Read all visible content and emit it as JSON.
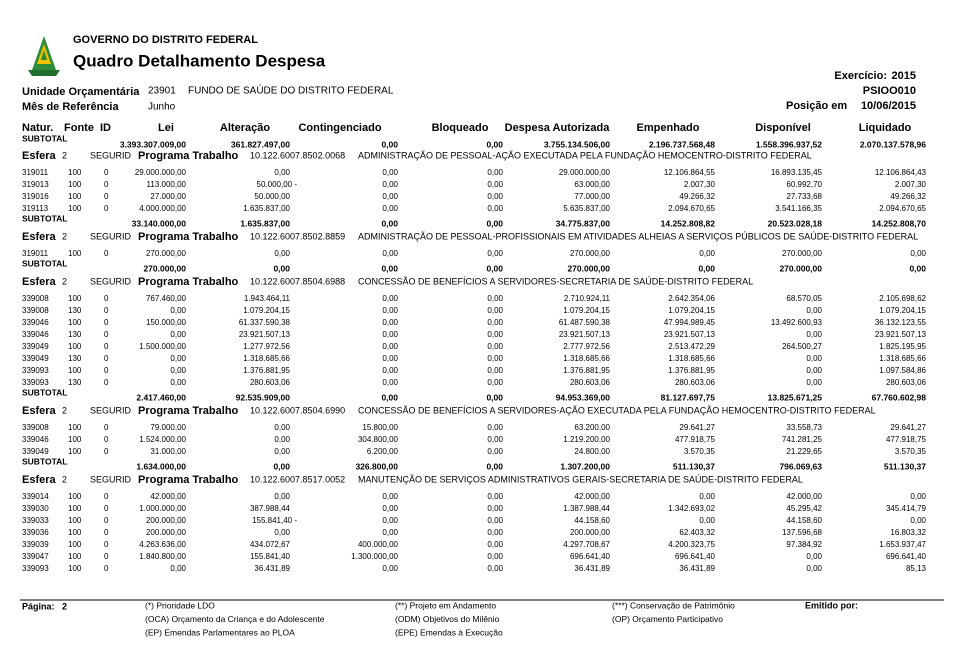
{
  "header": {
    "org": "GOVERNO DO DISTRITO FEDERAL",
    "title": "Quadro Detalhamento Despesa",
    "exercicio_label": "Exercício:",
    "exercicio": "2015",
    "code": "PSIOO010",
    "unidade_label": "Unidade Orçamentária",
    "unidade_code": "23901",
    "unidade_name": "FUNDO DE SAÚDE DO DISTRITO FEDERAL",
    "mes_label": "Mês de Referência",
    "mes": "Junho",
    "posicao_label": "Posição em",
    "posicao": "10/06/2015"
  },
  "columns": [
    "Natur.",
    "Fonte",
    "ID",
    "Lei",
    "Alteração",
    "Contingenciado",
    "Bloqueado",
    "Despesa Autorizada",
    "Empenhado",
    "Disponível",
    "Liquidado"
  ],
  "carry_subtotal": {
    "label": "SUBTOTAL",
    "values": [
      "3.393.307.009,00",
      "361.827.497,00",
      "0,00",
      "0,00",
      "3.755.134.506,00",
      "2.196.737.568,48",
      "1.558.396.937,52",
      "2.070.137.578,96"
    ]
  },
  "blocks": [
    {
      "esfera_label": "Esfera",
      "esfera": "2",
      "segurid": "SEGURID",
      "programa_label": "Programa Trabalho",
      "code": "10.122.6007.8502.0068",
      "desc": "ADMINISTRAÇÃO DE PESSOAL-AÇÃO EXECUTADA PELA FUNDAÇÃO HEMOCENTRO-DISTRITO FEDERAL",
      "rows": [
        [
          "319011",
          "100",
          "0",
          "29.000.000,00",
          "0,00",
          "0,00",
          "0,00",
          "29.000.000,00",
          "12.106.864,55",
          "16.893.135,45",
          "12.106.864,43"
        ],
        [
          "319013",
          "100",
          "0",
          "113.000,00",
          "50.000,00 -",
          "0,00",
          "0,00",
          "63.000,00",
          "2.007,30",
          "60.992,70",
          "2.007,30"
        ],
        [
          "319016",
          "100",
          "0",
          "27.000,00",
          "50.000,00",
          "0,00",
          "0,00",
          "77.000,00",
          "49.266,32",
          "27.733,68",
          "49.266,32"
        ],
        [
          "319113",
          "100",
          "0",
          "4.000.000,00",
          "1.635.837,00",
          "0,00",
          "0,00",
          "5.635.837,00",
          "2.094.670,65",
          "3.541.166,35",
          "2.094.670,65"
        ]
      ],
      "subtotal": {
        "label": "SUBTOTAL",
        "values": [
          "33.140.000,00",
          "1.635.837,00",
          "0,00",
          "0,00",
          "34.775.837,00",
          "14.252.808,82",
          "20.523.028,18",
          "14.252.808,70"
        ]
      }
    },
    {
      "esfera_label": "Esfera",
      "esfera": "2",
      "segurid": "SEGURID",
      "programa_label": "Programa Trabalho",
      "code": "10.122.6007.8502.8859",
      "desc": "ADMINISTRAÇÃO DE PESSOAL-PROFISSIONAIS EM ATIVIDADES ALHEIAS A SERVIÇOS PÚBLICOS DE SAÚDE-DISTRITO FEDERAL",
      "rows": [
        [
          "319011",
          "100",
          "0",
          "270.000,00",
          "0,00",
          "0,00",
          "0,00",
          "270.000,00",
          "0,00",
          "270.000,00",
          "0,00"
        ]
      ],
      "subtotal": {
        "label": "SUBTOTAL",
        "values": [
          "270.000,00",
          "0,00",
          "0,00",
          "0,00",
          "270.000,00",
          "0,00",
          "270.000,00",
          "0,00"
        ]
      }
    },
    {
      "esfera_label": "Esfera",
      "esfera": "2",
      "segurid": "SEGURID",
      "programa_label": "Programa Trabalho",
      "code": "10.122.6007.8504.6988",
      "desc": "CONCESSÃO DE BENEFÍCIOS A SERVIDORES-SECRETARIA DE SAÚDE-DISTRITO FEDERAL",
      "rows": [
        [
          "339008",
          "100",
          "0",
          "767.460,00",
          "1.943.464,11",
          "0,00",
          "0,00",
          "2.710.924,11",
          "2.642.354,06",
          "68.570,05",
          "2.105.698,62"
        ],
        [
          "339008",
          "130",
          "0",
          "0,00",
          "1.079.204,15",
          "0,00",
          "0,00",
          "1.079.204,15",
          "1.079.204,15",
          "0,00",
          "1.079.204,15"
        ],
        [
          "339046",
          "100",
          "0",
          "150.000,00",
          "61.337.590,38",
          "0,00",
          "0,00",
          "61.487.590,38",
          "47.994.989,45",
          "13.492.600,93",
          "36.132.123,55"
        ],
        [
          "339046",
          "130",
          "0",
          "0,00",
          "23.921.507,13",
          "0,00",
          "0,00",
          "23.921.507,13",
          "23.921.507,13",
          "0,00",
          "23.921.507,13"
        ],
        [
          "339049",
          "100",
          "0",
          "1.500.000,00",
          "1.277.972,56",
          "0,00",
          "0,00",
          "2.777.972,56",
          "2.513.472,29",
          "264.500,27",
          "1.825.195,95"
        ],
        [
          "339049",
          "130",
          "0",
          "0,00",
          "1.318.685,66",
          "0,00",
          "0,00",
          "1.318.685,66",
          "1.318.685,66",
          "0,00",
          "1.318.685,66"
        ],
        [
          "339093",
          "100",
          "0",
          "0,00",
          "1.376.881,95",
          "0,00",
          "0,00",
          "1.376.881,95",
          "1.376.881,95",
          "0,00",
          "1.097.584,86"
        ],
        [
          "339093",
          "130",
          "0",
          "0,00",
          "280.603,06",
          "0,00",
          "0,00",
          "280.603,06",
          "280.603,06",
          "0,00",
          "280.603,06"
        ]
      ],
      "subtotal": {
        "label": "SUBTOTAL",
        "values": [
          "2.417.460,00",
          "92.535.909,00",
          "0,00",
          "0,00",
          "94.953.369,00",
          "81.127.697,75",
          "13.825.671,25",
          "67.760.602,98"
        ]
      }
    },
    {
      "esfera_label": "Esfera",
      "esfera": "2",
      "segurid": "SEGURID",
      "programa_label": "Programa Trabalho",
      "code": "10.122.6007.8504.6990",
      "desc": "CONCESSÃO DE BENEFÍCIOS A SERVIDORES-AÇÃO EXECUTADA PELA FUNDAÇÃO HEMOCENTRO-DISTRITO FEDERAL",
      "rows": [
        [
          "339008",
          "100",
          "0",
          "79.000,00",
          "0,00",
          "15.800,00",
          "0,00",
          "63.200,00",
          "29.641,27",
          "33.558,73",
          "29.641,27"
        ],
        [
          "339046",
          "100",
          "0",
          "1.524.000,00",
          "0,00",
          "304.800,00",
          "0,00",
          "1.219.200,00",
          "477.918,75",
          "741.281,25",
          "477.918,75"
        ],
        [
          "339049",
          "100",
          "0",
          "31.000,00",
          "0,00",
          "6.200,00",
          "0,00",
          "24.800,00",
          "3.570,35",
          "21.229,65",
          "3.570,35"
        ]
      ],
      "subtotal": {
        "label": "SUBTOTAL",
        "values": [
          "1.634.000,00",
          "0,00",
          "326.800,00",
          "0,00",
          "1.307.200,00",
          "511.130,37",
          "796.069,63",
          "511.130,37"
        ]
      }
    },
    {
      "esfera_label": "Esfera",
      "esfera": "2",
      "segurid": "SEGURID",
      "programa_label": "Programa Trabalho",
      "code": "10.122.6007.8517.0052",
      "desc": "MANUTENÇÃO DE SERVIÇOS ADMINISTRATIVOS GERAIS-SECRETARIA DE SAÚDE-DISTRITO FEDERAL",
      "rows": [
        [
          "339014",
          "100",
          "0",
          "42.000,00",
          "0,00",
          "0,00",
          "0,00",
          "42.000,00",
          "0,00",
          "42.000,00",
          "0,00"
        ],
        [
          "339030",
          "100",
          "0",
          "1.000.000,00",
          "387.988,44",
          "0,00",
          "0,00",
          "1.387.988,44",
          "1.342.693,02",
          "45.295,42",
          "345.414,79"
        ],
        [
          "339033",
          "100",
          "0",
          "200.000,00",
          "155.841,40 -",
          "0,00",
          "0,00",
          "44.158,60",
          "0,00",
          "44.158,60",
          "0,00"
        ],
        [
          "339036",
          "100",
          "0",
          "200.000,00",
          "0,00",
          "0,00",
          "0,00",
          "200.000,00",
          "62.403,32",
          "137.596,68",
          "16.803,32"
        ],
        [
          "339039",
          "100",
          "0",
          "4.263.636,00",
          "434.072,67",
          "400.000,00",
          "0,00",
          "4.297.708,67",
          "4.200.323,75",
          "97.384,92",
          "1.653.937,47"
        ],
        [
          "339047",
          "100",
          "0",
          "1.840.800,00",
          "155.841,40",
          "1.300.000,00",
          "0,00",
          "696.641,40",
          "696.641,40",
          "0,00",
          "696.641,40"
        ],
        [
          "339093",
          "100",
          "0",
          "0,00",
          "36.431,89",
          "0,00",
          "0,00",
          "36.431,89",
          "36.431,89",
          "0,00",
          "85,13"
        ]
      ]
    }
  ],
  "footer": {
    "page_label": "Página:",
    "page": "2",
    "emitido": "Emitido por:",
    "notes": [
      [
        "(*) Prioridade LDO",
        "(OCA) Orçamento da Criança e do Adolescente",
        "(EP) Emendas Parlamentares ao PLOA"
      ],
      [
        "(**) Projeto em Andamento",
        "(ODM) Objetivos do Milênio",
        "(EPE) Emendas à Execução"
      ],
      [
        "(***) Conservação de Patrimônio",
        "(OP) Orçamento Participativo"
      ]
    ]
  }
}
